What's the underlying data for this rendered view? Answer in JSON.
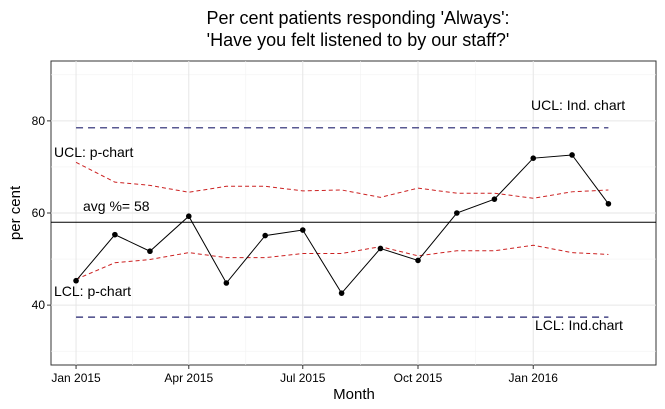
{
  "chart_data": {
    "type": "line",
    "title_line1": "Per cent patients responding 'Always':",
    "title_line2": "'Have you felt listened to by our staff?'",
    "xlabel": "Month",
    "ylabel": "per cent",
    "x": [
      "2015-01",
      "2015-02",
      "2015-03",
      "2015-04",
      "2015-05",
      "2015-06",
      "2015-07",
      "2015-08",
      "2015-09",
      "2015-10",
      "2015-11",
      "2015-12",
      "2016-01",
      "2016-02",
      "2016-03"
    ],
    "x_ticks": [
      {
        "value": "2015-01",
        "label": "Jan 2015"
      },
      {
        "value": "2015-04",
        "label": "Apr 2015"
      },
      {
        "value": "2015-07",
        "label": "Jul 2015"
      },
      {
        "value": "2015-10",
        "label": "Oct 2015"
      },
      {
        "value": "2016-01",
        "label": "Jan 2016"
      }
    ],
    "xlim": [
      "2014-12-12",
      "2016-04-08"
    ],
    "ylim": [
      27,
      93
    ],
    "y_ticks": [
      40,
      60,
      80
    ],
    "grid": true,
    "series": [
      {
        "values": [
          45.3,
          55.3,
          51.7,
          59.3,
          44.8,
          55.1,
          56.3,
          42.6,
          52.3,
          49.7,
          60.0,
          63.0,
          71.9,
          72.6,
          62.0
        ],
        "color": "#000000",
        "style": "solid-with-points"
      }
    ],
    "upper_limit_p": [
      71.0,
      66.7,
      66.0,
      64.5,
      65.8,
      65.8,
      64.8,
      65.0,
      63.4,
      65.4,
      64.3,
      64.3,
      63.2,
      64.6,
      65.0
    ],
    "lower_limit_p": [
      45.6,
      49.2,
      49.9,
      51.4,
      50.3,
      50.3,
      51.2,
      51.2,
      52.7,
      50.7,
      51.8,
      51.8,
      53.0,
      51.4,
      51.0
    ],
    "upper_limit_ind": 78.5,
    "lower_limit_ind": 37.4,
    "average": 58,
    "limit_color_p": "#cc2222",
    "limit_color_ind": "#22226e",
    "labels": {
      "ucl_ind": "UCL: Ind. chart",
      "ucl_p": "UCL: p-chart",
      "avg": "avg %= 58",
      "lcl_p": "LCL: p-chart",
      "lcl_ind": "LCL: Ind.chart"
    }
  }
}
